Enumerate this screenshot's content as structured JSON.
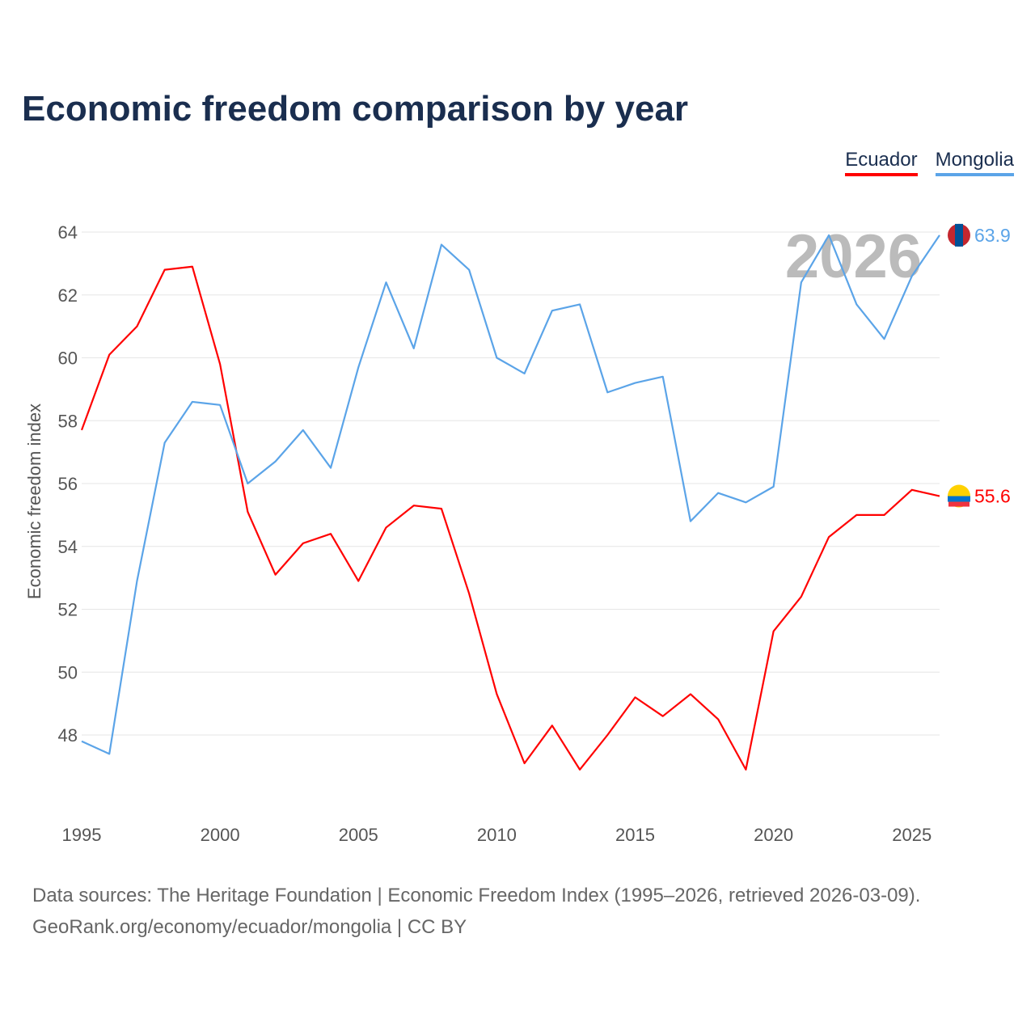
{
  "chart_data": {
    "type": "line",
    "title": "Economic freedom comparison by year",
    "ylabel": "Economic freedom index",
    "xlabel": "",
    "xlim": [
      1995,
      2026
    ],
    "ylim": [
      46,
      64.5
    ],
    "yticks": [
      48,
      50,
      52,
      54,
      56,
      58,
      60,
      62,
      64
    ],
    "xticks": [
      1995,
      2000,
      2005,
      2010,
      2015,
      2020,
      2025
    ],
    "grid": true,
    "legend_placement": "top-right",
    "watermark_year": "2026",
    "x": [
      1995,
      1996,
      1997,
      1998,
      1999,
      2000,
      2001,
      2002,
      2003,
      2004,
      2005,
      2006,
      2007,
      2008,
      2009,
      2010,
      2011,
      2012,
      2013,
      2014,
      2015,
      2016,
      2017,
      2018,
      2019,
      2020,
      2021,
      2022,
      2023,
      2024,
      2025,
      2026
    ],
    "series": [
      {
        "name": "Ecuador",
        "color": "#ff0000",
        "end_label": "55.6",
        "values": [
          57.7,
          60.1,
          61.0,
          62.8,
          62.9,
          59.8,
          55.1,
          53.1,
          54.1,
          54.4,
          52.9,
          54.6,
          55.3,
          55.2,
          52.5,
          49.3,
          47.1,
          48.3,
          46.9,
          48.0,
          49.2,
          48.6,
          49.3,
          48.5,
          46.9,
          51.3,
          52.4,
          54.3,
          55.0,
          55.0,
          55.8,
          55.6
        ]
      },
      {
        "name": "Mongolia",
        "color": "#5ba4e8",
        "end_label": "63.9",
        "values": [
          47.8,
          47.4,
          52.9,
          57.3,
          58.6,
          58.5,
          56.0,
          56.7,
          57.7,
          56.5,
          59.7,
          62.4,
          60.3,
          63.6,
          62.8,
          60.0,
          59.5,
          61.5,
          61.7,
          58.9,
          59.2,
          59.4,
          54.8,
          55.7,
          55.4,
          55.9,
          62.4,
          63.9,
          61.7,
          60.6,
          62.6,
          63.9
        ]
      }
    ]
  },
  "source_line1": "Data sources: The Heritage Foundation | Economic Freedom Index (1995–2026, retrieved 2026-03-09).",
  "source_line2": "GeoRank.org/economy/ecuador/mongolia | CC BY"
}
